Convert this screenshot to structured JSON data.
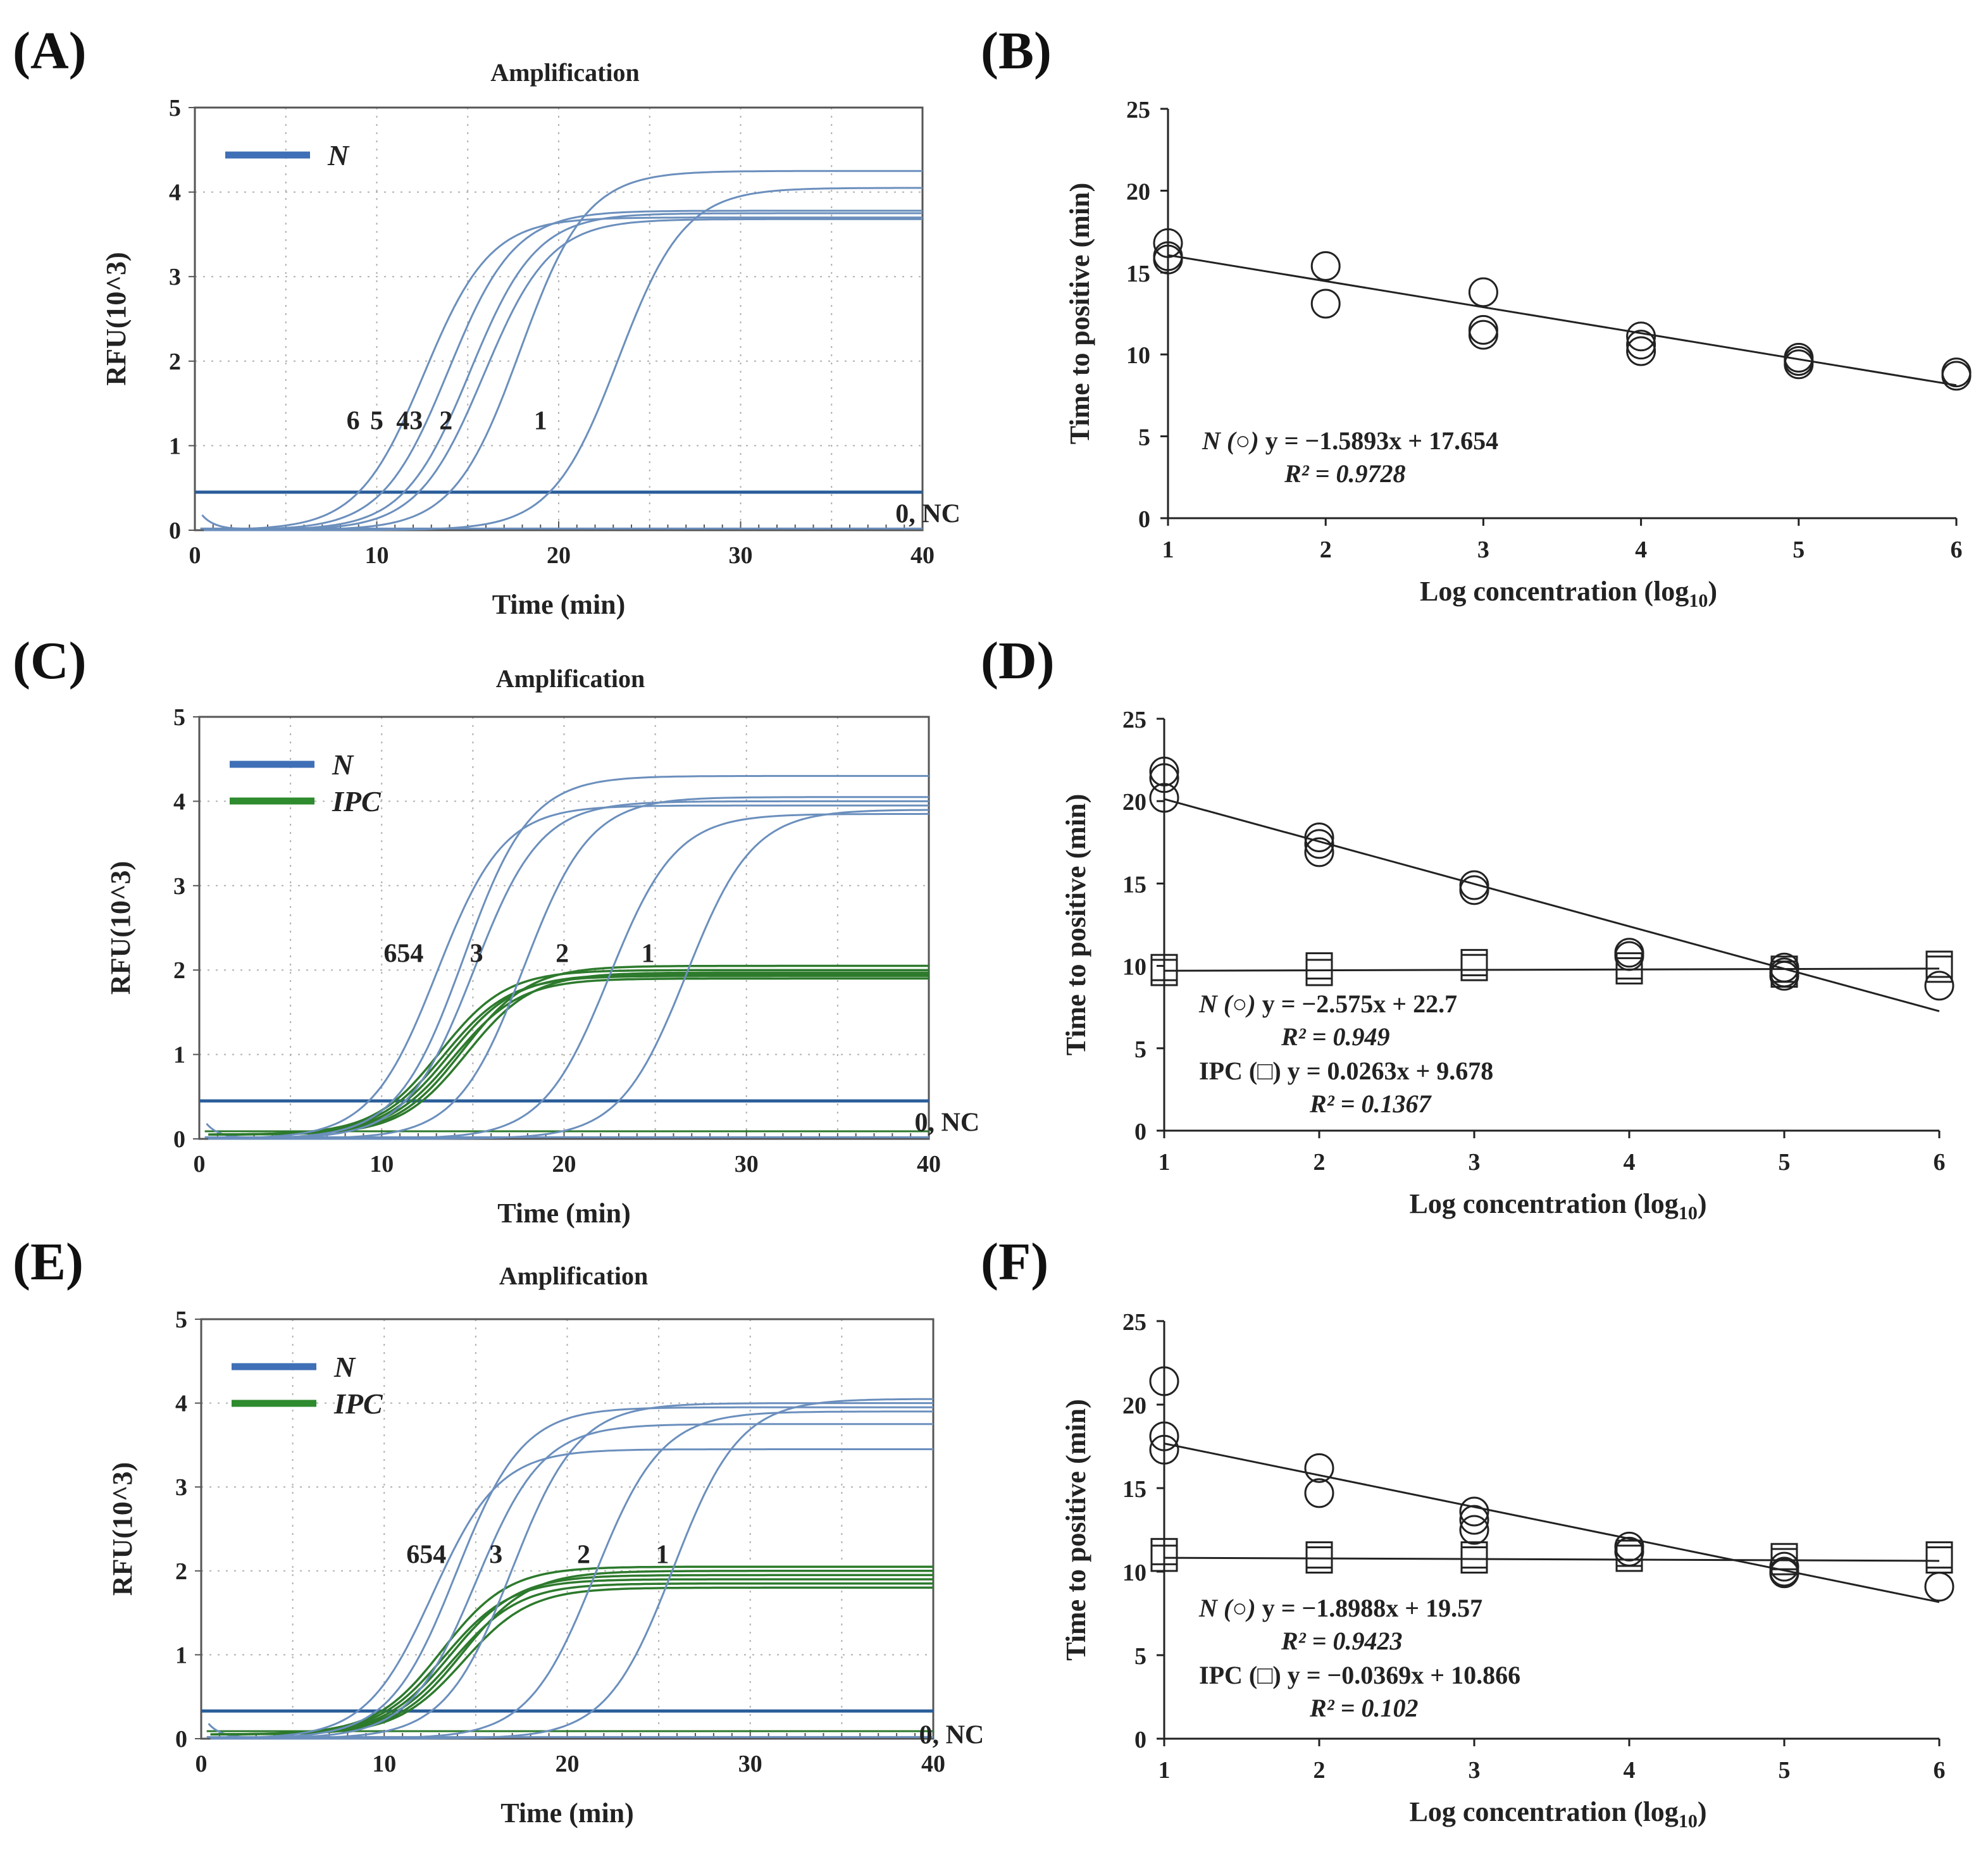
{
  "colors": {
    "n_curve": "#6b8fbd",
    "n_legend": "#3f6fb6",
    "ipc_curve": "#2d7a2d",
    "ipc_legend": "#2e8b2e",
    "threshold": "#2a5d9a",
    "grid": "#b0b0b0",
    "regression": "#222222"
  },
  "chart_data": [
    {
      "panel": "(A)",
      "type": "line",
      "title": "Amplification",
      "xlabel": "Time (min)",
      "ylabel": "RFU(10^3)",
      "xlim": [
        0,
        40
      ],
      "ylim": [
        0,
        5
      ],
      "xticks": [
        0,
        10,
        20,
        30,
        40
      ],
      "yticks": [
        0,
        1,
        2,
        3,
        4,
        5
      ],
      "grid": true,
      "legend_position": "top-left",
      "legend": [
        {
          "name": "N",
          "color": "#3f6fb6"
        }
      ],
      "threshold": 0.45,
      "series": [
        {
          "name": "N",
          "label": "6",
          "ct": 9.0,
          "plateau": 3.7
        },
        {
          "name": "N",
          "label": "5",
          "ct": 10.3,
          "plateau": 3.78
        },
        {
          "name": "N",
          "label": "4",
          "ct": 11.5,
          "plateau": 3.75
        },
        {
          "name": "N",
          "label": "3",
          "ct": 12.3,
          "plateau": 3.68
        },
        {
          "name": "N",
          "label": "2",
          "ct": 14.0,
          "plateau": 4.25
        },
        {
          "name": "N",
          "label": "1",
          "ct": 19.5,
          "plateau": 4.05
        },
        {
          "name": "N",
          "label": "0, NC",
          "ct": null,
          "plateau": 0.0
        }
      ],
      "annotations": [
        {
          "text": "6",
          "x": 8.7,
          "y": 1.3
        },
        {
          "text": "5",
          "x": 10.0,
          "y": 1.3
        },
        {
          "text": "43",
          "x": 11.8,
          "y": 1.3
        },
        {
          "text": "2",
          "x": 13.8,
          "y": 1.3
        },
        {
          "text": "1",
          "x": 19.0,
          "y": 1.3
        },
        {
          "text": "0, NC",
          "x": 40.3,
          "y": 0.2
        }
      ]
    },
    {
      "panel": "(B)",
      "type": "scatter",
      "xlabel": "Log concentration (log",
      "xlabel_sub": "10",
      "xlabel_close": ")",
      "ylabel": "Time to positive (min)",
      "xlim": [
        1,
        6
      ],
      "ylim": [
        0,
        25
      ],
      "xticks": [
        1,
        2,
        3,
        4,
        5,
        6
      ],
      "yticks": [
        0,
        5,
        10,
        15,
        20,
        25
      ],
      "grid": false,
      "series": [
        {
          "name": "N",
          "marker": "circle",
          "x": [
            1,
            1,
            1,
            2,
            2,
            3,
            3,
            3,
            4,
            4,
            4,
            5,
            5,
            5,
            6,
            6
          ],
          "y": [
            16.8,
            16.0,
            15.8,
            15.4,
            13.1,
            13.8,
            11.5,
            11.2,
            11.1,
            10.6,
            10.2,
            9.8,
            9.6,
            9.4,
            8.9,
            8.7
          ],
          "fit": {
            "slope": -1.5893,
            "intercept": 17.654
          },
          "equation": "y = −1.5893x + 17.654",
          "label": "N (○)",
          "r2_label": "R² = 0.9728"
        }
      ]
    },
    {
      "panel": "(C)",
      "type": "line",
      "title": "Amplification",
      "xlabel": "Time (min)",
      "ylabel": "RFU(10^3)",
      "xlim": [
        0,
        40
      ],
      "ylim": [
        0,
        5
      ],
      "xticks": [
        0,
        10,
        20,
        30,
        40
      ],
      "yticks": [
        0,
        1,
        2,
        3,
        4,
        5
      ],
      "grid": true,
      "legend_position": "top-left",
      "legend": [
        {
          "name": "N",
          "color": "#3f6fb6"
        },
        {
          "name": "IPC",
          "color": "#2e8b2e"
        }
      ],
      "threshold": 0.45,
      "series": [
        {
          "name": "N",
          "label": "6",
          "ct": 9.3,
          "plateau": 3.95
        },
        {
          "name": "N",
          "label": "5",
          "ct": 10.6,
          "plateau": 4.3
        },
        {
          "name": "N",
          "label": "4",
          "ct": 11.3,
          "plateau": 4.0
        },
        {
          "name": "N",
          "label": "3",
          "ct": 14.0,
          "plateau": 4.05
        },
        {
          "name": "N",
          "label": "2",
          "ct": 18.8,
          "plateau": 3.85
        },
        {
          "name": "N",
          "label": "1",
          "ct": 23.0,
          "plateau": 3.9
        },
        {
          "name": "N",
          "label": "0, NC",
          "ct": null,
          "plateau": 0.0
        },
        {
          "name": "IPC",
          "ct": 11.0,
          "plateau": 1.95
        },
        {
          "name": "IPC",
          "ct": 11.3,
          "plateau": 1.88
        },
        {
          "name": "IPC",
          "ct": 11.6,
          "plateau": 1.9
        },
        {
          "name": "IPC",
          "ct": 11.9,
          "plateau": 1.85
        },
        {
          "name": "IPC",
          "ct": 12.2,
          "plateau": 2.0
        },
        {
          "name": "IPC",
          "ct": 12.5,
          "plateau": 1.92
        }
      ],
      "annotations": [
        {
          "text": "654",
          "x": 11.2,
          "y": 2.2
        },
        {
          "text": "3",
          "x": 15.2,
          "y": 2.2
        },
        {
          "text": "2",
          "x": 19.9,
          "y": 2.2
        },
        {
          "text": "1",
          "x": 24.6,
          "y": 2.2
        },
        {
          "text": "0, NC",
          "x": 41.0,
          "y": 0.2
        }
      ]
    },
    {
      "panel": "(D)",
      "type": "scatter",
      "xlabel": "Log concentration (log",
      "xlabel_sub": "10",
      "xlabel_close": ")",
      "ylabel": "Time to positive (min)",
      "xlim": [
        1,
        6
      ],
      "ylim": [
        0,
        25
      ],
      "xticks": [
        1,
        2,
        3,
        4,
        5,
        6
      ],
      "yticks": [
        0,
        5,
        10,
        15,
        20,
        25
      ],
      "grid": false,
      "series": [
        {
          "name": "N",
          "marker": "circle",
          "x": [
            1,
            1,
            1,
            2,
            2,
            2,
            3,
            3,
            4,
            4,
            5,
            5,
            5,
            6
          ],
          "y": [
            21.8,
            21.4,
            20.2,
            17.8,
            17.4,
            16.9,
            14.9,
            14.6,
            10.8,
            10.6,
            9.9,
            9.6,
            9.4,
            8.8
          ],
          "fit": {
            "slope": -2.575,
            "intercept": 22.7
          },
          "equation": "y = −2.575x + 22.7",
          "label": "N (○)",
          "r2_label": "R² = 0.949"
        },
        {
          "name": "IPC",
          "marker": "square",
          "x": [
            1,
            1,
            2,
            2,
            3,
            3,
            4,
            4,
            5,
            5,
            6,
            6
          ],
          "y": [
            9.9,
            9.6,
            10.0,
            9.6,
            10.2,
            9.9,
            10.0,
            9.7,
            9.8,
            9.5,
            10.1,
            9.8
          ],
          "fit": {
            "slope": 0.0263,
            "intercept": 9.678
          },
          "equation": "y = 0.0263x + 9.678",
          "label": "IPC (□)",
          "r2_label": "R² = 0.1367"
        }
      ]
    },
    {
      "panel": "(E)",
      "type": "line",
      "title": "Amplification",
      "xlabel": "Time (min)",
      "ylabel": "RFU(10^3)",
      "xlim": [
        0,
        40
      ],
      "ylim": [
        0,
        5
      ],
      "xticks": [
        0,
        10,
        20,
        30,
        40
      ],
      "yticks": [
        0,
        1,
        2,
        3,
        4,
        5
      ],
      "grid": true,
      "legend_position": "top-left",
      "legend": [
        {
          "name": "N",
          "color": "#3f6fb6"
        },
        {
          "name": "IPC",
          "color": "#2e8b2e"
        }
      ],
      "threshold": 0.33,
      "series": [
        {
          "name": "N",
          "label": "6",
          "ct": 9.2,
          "plateau": 3.45
        },
        {
          "name": "N",
          "label": "5",
          "ct": 10.2,
          "plateau": 3.95
        },
        {
          "name": "N",
          "label": "4",
          "ct": 11.4,
          "plateau": 3.75
        },
        {
          "name": "N",
          "label": "3",
          "ct": 13.2,
          "plateau": 4.0
        },
        {
          "name": "N",
          "label": "2",
          "ct": 17.8,
          "plateau": 3.9
        },
        {
          "name": "N",
          "label": "1",
          "ct": 22.0,
          "plateau": 4.05
        },
        {
          "name": "N",
          "label": "0, NC",
          "ct": null,
          "plateau": 0.0
        },
        {
          "name": "IPC",
          "ct": 10.9,
          "plateau": 2.0
        },
        {
          "name": "IPC",
          "ct": 11.2,
          "plateau": 1.85
        },
        {
          "name": "IPC",
          "ct": 11.5,
          "plateau": 1.9
        },
        {
          "name": "IPC",
          "ct": 11.8,
          "plateau": 1.8
        },
        {
          "name": "IPC",
          "ct": 12.1,
          "plateau": 1.95
        },
        {
          "name": "IPC",
          "ct": 12.4,
          "plateau": 1.75
        }
      ],
      "annotations": [
        {
          "text": "654",
          "x": 12.3,
          "y": 2.2
        },
        {
          "text": "3",
          "x": 16.1,
          "y": 2.2
        },
        {
          "text": "2",
          "x": 20.9,
          "y": 2.2
        },
        {
          "text": "1",
          "x": 25.2,
          "y": 2.2
        },
        {
          "text": "0, NC",
          "x": 41.0,
          "y": 0.05
        }
      ]
    },
    {
      "panel": "(F)",
      "type": "scatter",
      "xlabel": "Log concentration (log",
      "xlabel_sub": "10",
      "xlabel_close": ")",
      "ylabel": "Time to positive (min)",
      "xlim": [
        1,
        6
      ],
      "ylim": [
        0,
        25
      ],
      "xticks": [
        1,
        2,
        3,
        4,
        5,
        6
      ],
      "yticks": [
        0,
        5,
        10,
        15,
        20,
        25
      ],
      "grid": false,
      "series": [
        {
          "name": "N",
          "marker": "circle",
          "x": [
            1,
            1,
            1,
            2,
            2,
            3,
            3,
            3,
            4,
            4,
            5,
            5,
            5,
            6
          ],
          "y": [
            21.4,
            18.1,
            17.3,
            16.2,
            14.7,
            13.6,
            13.1,
            12.5,
            11.5,
            11.2,
            10.3,
            10.0,
            9.9,
            9.1
          ],
          "fit": {
            "slope": -1.8988,
            "intercept": 19.57
          },
          "equation": "y = −1.8988x + 19.57",
          "label": "N (○)",
          "r2_label": "R² = 0.9423"
        },
        {
          "name": "IPC",
          "marker": "square",
          "x": [
            1,
            1,
            2,
            2,
            3,
            3,
            4,
            4,
            5,
            5,
            6,
            6
          ],
          "y": [
            11.2,
            10.8,
            11.0,
            10.7,
            11.0,
            10.7,
            11.1,
            10.8,
            10.9,
            10.6,
            11.0,
            10.7
          ],
          "fit": {
            "slope": -0.0369,
            "intercept": 10.866
          },
          "equation": "y = −0.0369x + 10.866",
          "label": "IPC (□)",
          "r2_label": "R² = 0.102"
        }
      ]
    }
  ]
}
